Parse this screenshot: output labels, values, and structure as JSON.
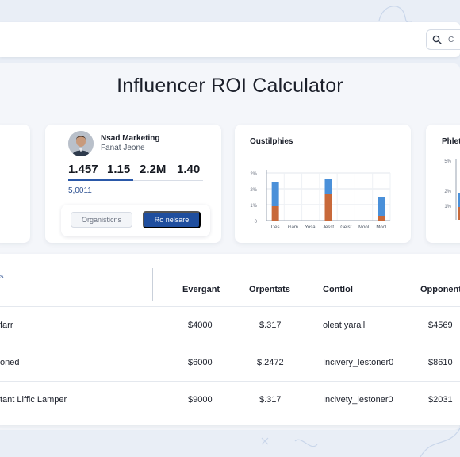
{
  "title": "Influencer ROI Calculator",
  "search": {
    "label": "C"
  },
  "profile": {
    "name": "Nsad Marketing",
    "role": "Fanat Jeone",
    "metrics": [
      "1.457",
      "1.15",
      "2.2M",
      "1.40"
    ],
    "sub_value": "5,0011",
    "secondary_button": "Organisticns",
    "primary_button": "Ro nelsare"
  },
  "chart_card": {
    "title": "Oustilphies"
  },
  "right_card": {
    "title": "Phlet"
  },
  "chart_data": {
    "type": "bar",
    "title": "Oustilphies",
    "categories": [
      "Des",
      "Gam",
      "Yosal",
      "Jesst",
      "Geist",
      "Mool",
      "Mool"
    ],
    "y_tick_labels": [
      "0",
      "1%",
      "2%",
      "2%"
    ],
    "ylim": [
      0,
      3
    ],
    "series": [
      {
        "name": "",
        "color": "#c8693a",
        "values": [
          0.9,
          0,
          0,
          1.65,
          0,
          0,
          0.3
        ]
      },
      {
        "name": "",
        "color": "#4a90d9",
        "values": [
          1.5,
          0,
          0,
          1.0,
          0,
          0,
          1.2
        ]
      }
    ],
    "grid": true,
    "legend": "none"
  },
  "right_chart": {
    "y_tick_labels": [
      "5%",
      "2%",
      "1%"
    ],
    "bar_color_bottom": "#c8693a",
    "bar_color_top": "#4a90d9"
  },
  "table": {
    "left_header": "s",
    "headers": [
      "Evergant",
      "Orpentats",
      "Contlol",
      "Opponent"
    ],
    "rows": [
      [
        "farr",
        "$4000",
        "$.317",
        "oleat yarall",
        "$4569"
      ],
      [
        "oned",
        "$6000",
        "$.2472",
        "Incivery_lestoner0",
        "$8610"
      ],
      [
        "tant Liffic Lamper",
        "$9000",
        "$.317",
        "Incivety_lestoner0",
        "$2031"
      ]
    ]
  },
  "colors": {
    "accent": "#1f4e9e",
    "background": "#e9eef6",
    "bar_orange": "#c8693a",
    "bar_blue": "#4a90d9"
  }
}
